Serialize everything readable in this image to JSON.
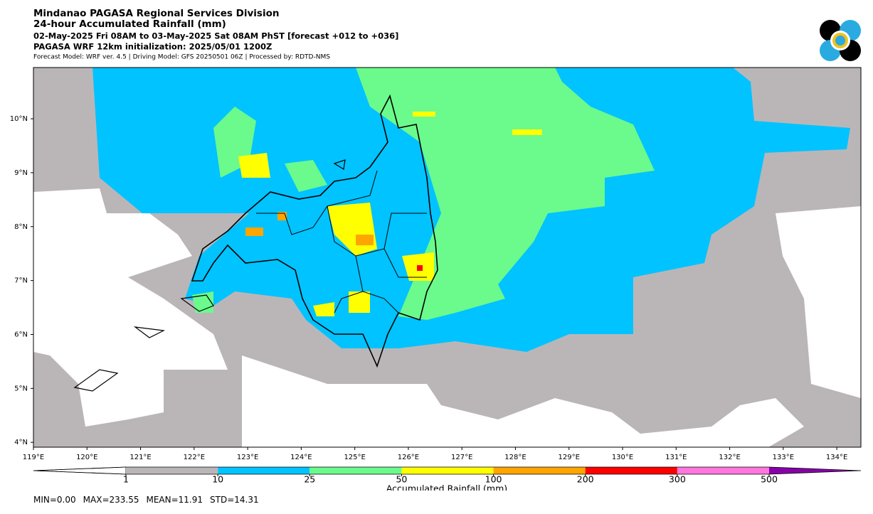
{
  "header": {
    "lines": [
      "Mindanao PAGASA Regional Services Division",
      "24-hour Accumulated Rainfall (mm)",
      "02-May-2025 Fri 08AM to 03-May-2025 Sat 08AM PhST [forecast +012 to +036]",
      "PAGASA WRF 12km initialization: 2025/05/01 1200Z",
      "Forecast Model: WRF ver. 4.5 | Driving Model: GFS 20250501 06Z | Processed by: RDTD-NMS"
    ]
  },
  "map": {
    "lonlim": [
      119,
      134.45
    ],
    "latlim": [
      3.91,
      10.95
    ],
    "lon_ticks": [
      {
        "value": 119,
        "label": "119°E"
      },
      {
        "value": 120,
        "label": "120°E"
      },
      {
        "value": 121,
        "label": "121°E"
      },
      {
        "value": 122,
        "label": "122°E"
      },
      {
        "value": 123,
        "label": "123°E"
      },
      {
        "value": 124,
        "label": "124°E"
      },
      {
        "value": 125,
        "label": "125°E"
      },
      {
        "value": 126,
        "label": "126°E"
      },
      {
        "value": 127,
        "label": "127°E"
      },
      {
        "value": 128,
        "label": "128°E"
      },
      {
        "value": 129,
        "label": "129°E"
      },
      {
        "value": 130,
        "label": "130°E"
      },
      {
        "value": 131,
        "label": "131°E"
      },
      {
        "value": 132,
        "label": "132°E"
      },
      {
        "value": 133,
        "label": "133°E"
      },
      {
        "value": 134,
        "label": "134°E"
      }
    ],
    "lat_ticks": [
      {
        "value": 4,
        "label": "4°N"
      },
      {
        "value": 5,
        "label": "5°N"
      },
      {
        "value": 6,
        "label": "6°N"
      },
      {
        "value": 7,
        "label": "7°N"
      },
      {
        "value": 8,
        "label": "8°N"
      },
      {
        "value": 9,
        "label": "9°N"
      },
      {
        "value": 10,
        "label": "10°N"
      }
    ]
  },
  "colorbar": {
    "levels": [
      1,
      10,
      25,
      50,
      100,
      200,
      300,
      500
    ],
    "colors": [
      "#ffffff",
      "#bab6b8",
      "#00c3ff",
      "#6bfa8c",
      "#ffff00",
      "#ffa500",
      "#ff0000",
      "#ff77dd",
      "#8800aa"
    ],
    "label": "Accumulated Rainfall (mm)"
  },
  "stats": [
    "MIN=0.00",
    "MAX=233.55",
    "MEAN=11.91",
    "STD=14.31"
  ]
}
